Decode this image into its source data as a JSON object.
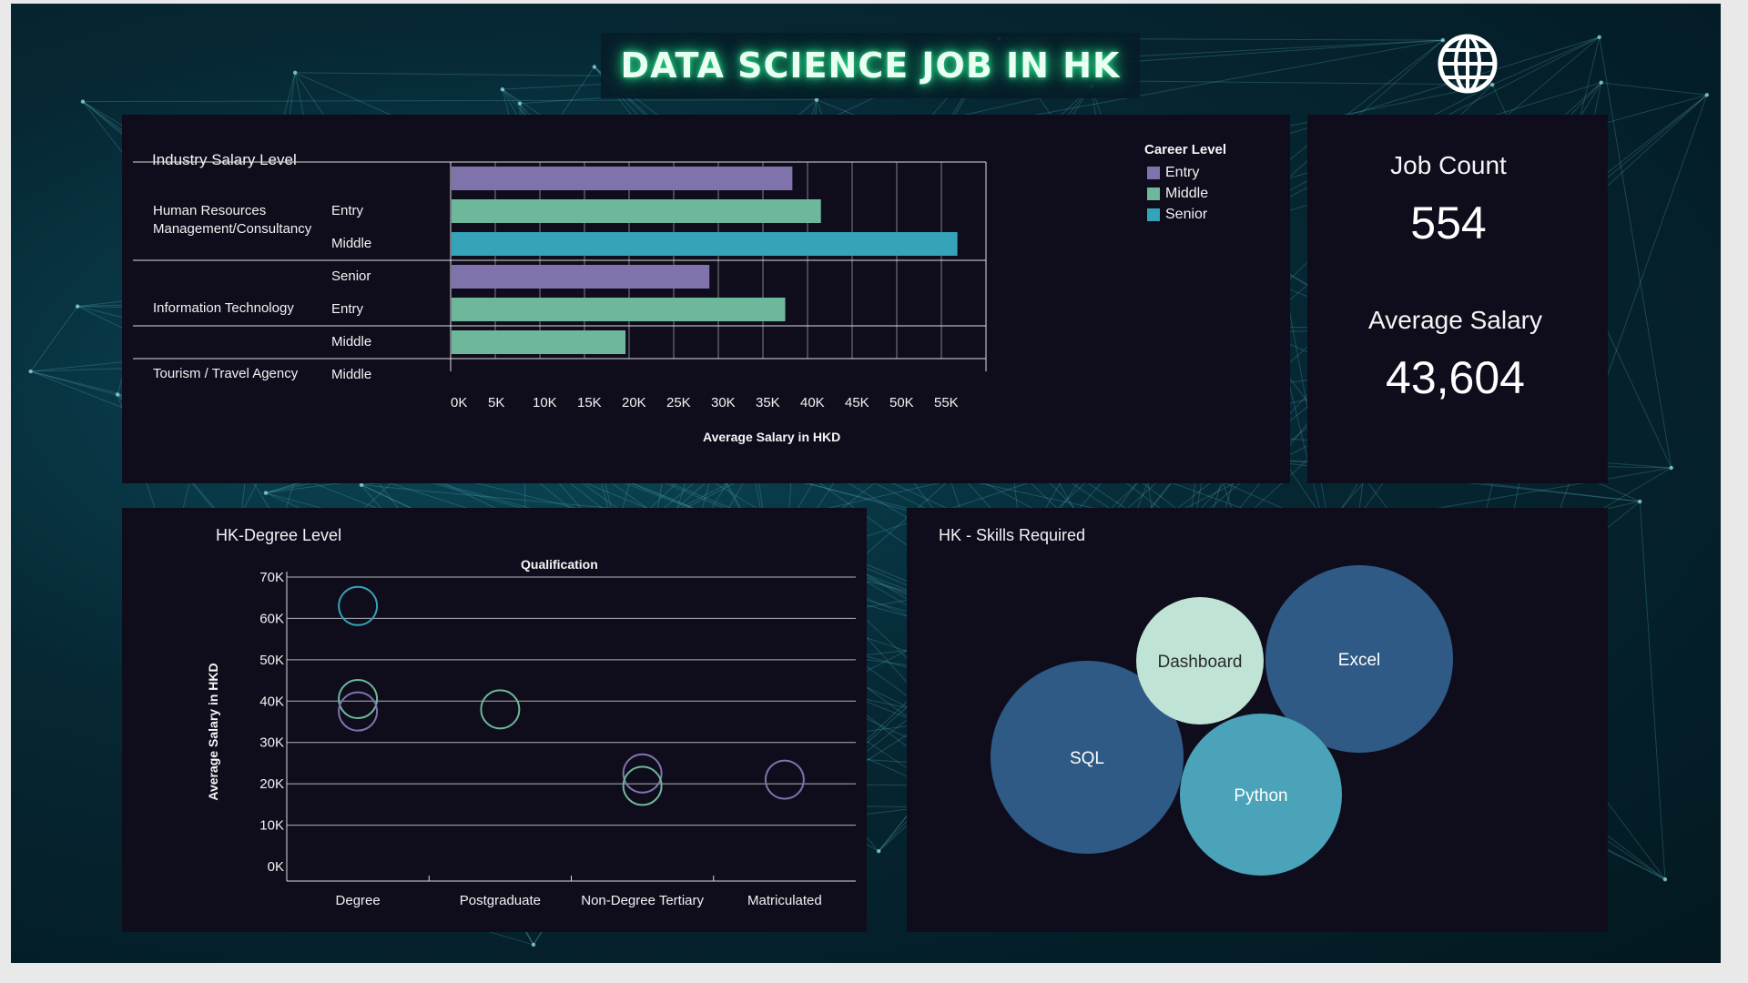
{
  "title": "DATA SCIENCE JOB IN HK",
  "header_icon": "globe-icon",
  "colors": {
    "entry": "#8073ac",
    "middle": "#6db89a",
    "senior": "#35a3b8",
    "panel": "#0f0d1c",
    "skill_dark": "#2e5a85",
    "skill_light": "#bfe3d5",
    "skill_mid": "#4aa3b8"
  },
  "kpis": {
    "job_count_label": "Job Count",
    "job_count_value": "554",
    "avg_salary_label": "Average Salary",
    "avg_salary_value": "43,604"
  },
  "industry_chart": {
    "panel_title": "Industry Salary Level",
    "chart_data": {
      "type": "bar",
      "orientation": "horizontal",
      "xlabel": "Average Salary in HKD",
      "xlim": [
        0,
        60000
      ],
      "xticks": [
        "0K",
        "5K",
        "10K",
        "15K",
        "20K",
        "25K",
        "30K",
        "35K",
        "40K",
        "45K",
        "50K",
        "55K"
      ],
      "legend_title": "Career Level",
      "legend": [
        "Entry",
        "Middle",
        "Senior"
      ],
      "legend_position": "top-right",
      "groups": [
        {
          "industry": "Human Resources Management/Consultancy",
          "bars": [
            {
              "level": "Entry",
              "value": 38300
            },
            {
              "level": "Middle",
              "value": 41500
            },
            {
              "level": "Senior",
              "value": 56800
            }
          ]
        },
        {
          "industry": "Information Technology",
          "bars": [
            {
              "level": "Entry",
              "value": 29000
            },
            {
              "level": "Middle",
              "value": 37500
            }
          ]
        },
        {
          "industry": "Tourism / Travel Agency",
          "bars": [
            {
              "level": "Middle",
              "value": 19600
            }
          ]
        }
      ]
    }
  },
  "degree_chart": {
    "panel_title": "HK-Degree Level",
    "chart_data": {
      "type": "scatter",
      "title": "Qualification",
      "ylabel": "Average Salary in HKD",
      "ylim": [
        0,
        70000
      ],
      "yticks": [
        "0K",
        "10K",
        "20K",
        "30K",
        "40K",
        "50K",
        "60K",
        "70K"
      ],
      "categories": [
        "Degree",
        "Postgraduate",
        "Non-Degree Tertiary",
        "Matriculated"
      ],
      "points": [
        {
          "category": "Degree",
          "level": "Senior",
          "value": 63000
        },
        {
          "category": "Degree",
          "level": "Middle",
          "value": 40500
        },
        {
          "category": "Degree",
          "level": "Entry",
          "value": 37500
        },
        {
          "category": "Postgraduate",
          "level": "Middle",
          "value": 38000
        },
        {
          "category": "Non-Degree Tertiary",
          "level": "Entry",
          "value": 22500
        },
        {
          "category": "Non-Degree Tertiary",
          "level": "Middle",
          "value": 19500
        },
        {
          "category": "Matriculated",
          "level": "Entry",
          "value": 21000
        }
      ]
    }
  },
  "skills": {
    "panel_title": "HK - Skills Required",
    "items": [
      {
        "label": "SQL",
        "shade": "skill_dark"
      },
      {
        "label": "Dashboard",
        "shade": "skill_light"
      },
      {
        "label": "Excel",
        "shade": "skill_dark"
      },
      {
        "label": "Python",
        "shade": "skill_mid"
      }
    ]
  }
}
